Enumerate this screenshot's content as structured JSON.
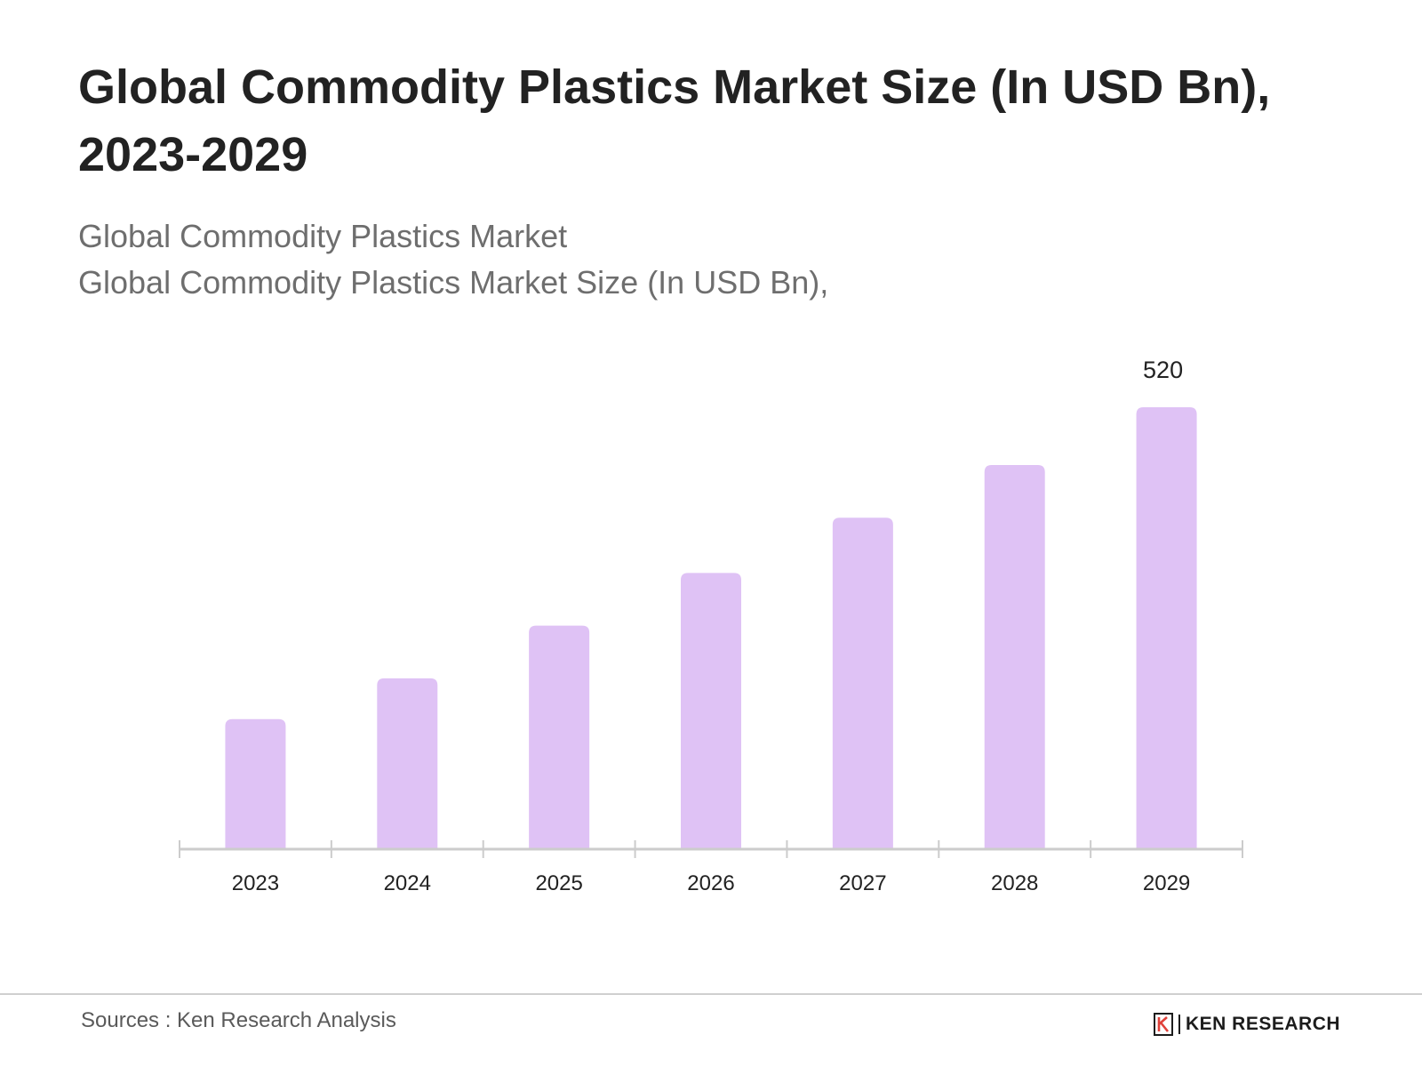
{
  "title": "Global Commodity Plastics Market Size (In USD Bn), 2023-2029",
  "subtitle_lines": [
    "Global Commodity Plastics Market",
    "Global Commodity Plastics Market Size (In USD Bn),"
  ],
  "source": "Sources : Ken Research Analysis",
  "brand": {
    "name": "KEN RESEARCH",
    "logo_letter": "K",
    "logo_icon": "ken-research-k-logo-icon"
  },
  "colors": {
    "bar": "#dfc2f5",
    "axis": "#cccccc",
    "title": "#222222",
    "subtitle": "#6e6e6e"
  },
  "chart_data": {
    "type": "bar",
    "categories": [
      "2023",
      "2024",
      "2025",
      "2026",
      "2027",
      "2028",
      "2029"
    ],
    "values": [
      153,
      201,
      263,
      325,
      390,
      452,
      520
    ],
    "data_labels": [
      {
        "index": 6,
        "text": "520"
      }
    ],
    "title": "",
    "xlabel": "",
    "ylabel": "",
    "ylim": [
      0,
      520
    ],
    "grid": false,
    "legend": "none"
  }
}
